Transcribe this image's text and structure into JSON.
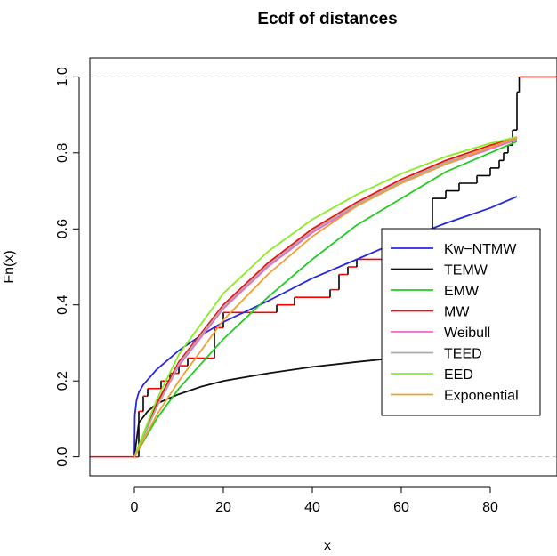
{
  "chart_data": {
    "type": "line",
    "title": "Ecdf of distances",
    "xlabel": "x",
    "ylabel": "Fn(x)",
    "xlim": [
      -10,
      95
    ],
    "ylim": [
      -0.05,
      1.05
    ],
    "x_ticks": [
      0,
      20,
      40,
      60,
      80
    ],
    "y_ticks": [
      0.0,
      0.2,
      0.4,
      0.6,
      0.8,
      1.0
    ],
    "x_tick_labels": [
      "0",
      "20",
      "40",
      "60",
      "80"
    ],
    "y_tick_labels": [
      "0.0",
      "0.2",
      "0.4",
      "0.6",
      "0.8",
      "1.0"
    ],
    "reference_lines_y": [
      0,
      1
    ],
    "reference_line_color": "#bbbbbb",
    "legend_position": "right",
    "ecdf": {
      "color_low": "#ff0000",
      "color_high": "#000000",
      "steps": [
        [
          1,
          0.12
        ],
        [
          2,
          0.16
        ],
        [
          3,
          0.18
        ],
        [
          6,
          0.2
        ],
        [
          8,
          0.22
        ],
        [
          10,
          0.24
        ],
        [
          12,
          0.26
        ],
        [
          18,
          0.34
        ],
        [
          20,
          0.38
        ],
        [
          32,
          0.4
        ],
        [
          36,
          0.42
        ],
        [
          44,
          0.44
        ],
        [
          46,
          0.48
        ],
        [
          48,
          0.5
        ],
        [
          50,
          0.52
        ],
        [
          56,
          0.54
        ],
        [
          60,
          0.56
        ],
        [
          63,
          0.6
        ],
        [
          67,
          0.68
        ],
        [
          70,
          0.7
        ],
        [
          73,
          0.72
        ],
        [
          77,
          0.74
        ],
        [
          80,
          0.76
        ],
        [
          82,
          0.78
        ],
        [
          83,
          0.8
        ],
        [
          84,
          0.82
        ],
        [
          85,
          0.86
        ],
        [
          86,
          0.96
        ],
        [
          86.5,
          1.0
        ]
      ]
    },
    "series": [
      {
        "name": "Kw−NTMW",
        "color": "#2828e0",
        "x": [
          0,
          0.1,
          0.5,
          1,
          2,
          5,
          10,
          15,
          20,
          30,
          40,
          50,
          60,
          70,
          80,
          86
        ],
        "y": [
          0,
          0.11,
          0.15,
          0.17,
          0.19,
          0.23,
          0.28,
          0.32,
          0.355,
          0.41,
          0.47,
          0.52,
          0.57,
          0.615,
          0.655,
          0.685
        ]
      },
      {
        "name": "TEMW",
        "color": "#111111",
        "x": [
          0,
          1,
          3,
          5,
          10,
          15,
          20,
          30,
          40,
          50,
          60,
          70,
          80,
          86
        ],
        "y": [
          0,
          0.09,
          0.12,
          0.14,
          0.165,
          0.185,
          0.2,
          0.22,
          0.237,
          0.25,
          0.262,
          0.272,
          0.282,
          0.29
        ]
      },
      {
        "name": "EMW",
        "color": "#22cc22",
        "x": [
          0,
          5,
          10,
          20,
          30,
          40,
          50,
          60,
          70,
          80,
          86
        ],
        "y": [
          0,
          0.1,
          0.18,
          0.31,
          0.42,
          0.52,
          0.61,
          0.68,
          0.75,
          0.8,
          0.83
        ]
      },
      {
        "name": "MW",
        "color": "#ee1111",
        "x": [
          0,
          5,
          10,
          20,
          30,
          40,
          50,
          60,
          70,
          80,
          86
        ],
        "y": [
          0,
          0.14,
          0.25,
          0.4,
          0.51,
          0.6,
          0.67,
          0.73,
          0.78,
          0.82,
          0.84
        ]
      },
      {
        "name": "Weibull",
        "color": "#ee66cc",
        "x": [
          0,
          5,
          10,
          20,
          30,
          40,
          50,
          60,
          70,
          80,
          86
        ],
        "y": [
          0,
          0.13,
          0.24,
          0.39,
          0.5,
          0.59,
          0.66,
          0.72,
          0.77,
          0.81,
          0.835
        ]
      },
      {
        "name": "TEED",
        "color": "#aaaaaa",
        "x": [
          0,
          5,
          10,
          20,
          30,
          40,
          50,
          60,
          70,
          80,
          86
        ],
        "y": [
          0,
          0.13,
          0.245,
          0.395,
          0.505,
          0.595,
          0.665,
          0.725,
          0.775,
          0.815,
          0.838
        ]
      },
      {
        "name": "EED",
        "color": "#88ee22",
        "x": [
          0,
          5,
          10,
          20,
          30,
          40,
          50,
          60,
          70,
          80,
          86
        ],
        "y": [
          0,
          0.15,
          0.27,
          0.43,
          0.54,
          0.625,
          0.69,
          0.745,
          0.79,
          0.825,
          0.842
        ]
      },
      {
        "name": "Exponential",
        "color": "#eea033",
        "x": [
          0,
          5,
          10,
          20,
          30,
          40,
          50,
          60,
          70,
          80,
          86
        ],
        "y": [
          0,
          0.11,
          0.2,
          0.36,
          0.48,
          0.58,
          0.66,
          0.72,
          0.77,
          0.815,
          0.84
        ]
      }
    ]
  }
}
